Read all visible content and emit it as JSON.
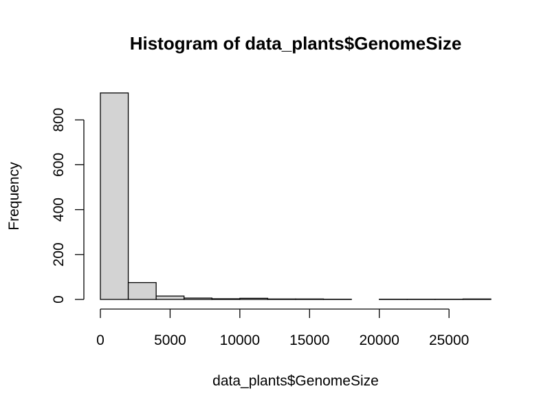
{
  "chart_data": {
    "type": "bar",
    "title": "Histogram of data_plants$GenomeSize",
    "xlabel": "data_plants$GenomeSize",
    "ylabel": "Frequency",
    "bin_edges": [
      0,
      2000,
      4000,
      6000,
      8000,
      10000,
      12000,
      14000,
      16000,
      18000,
      20000,
      22000,
      24000,
      26000,
      28000
    ],
    "values": [
      920,
      75,
      15,
      6,
      3,
      5,
      2,
      2,
      1,
      0,
      1,
      1,
      1,
      2
    ],
    "xlim": [
      0,
      28000
    ],
    "ylim": [
      0,
      920
    ],
    "x_ticks": [
      0,
      5000,
      10000,
      15000,
      20000,
      25000
    ],
    "x_tick_labels": [
      "0",
      "5000",
      "10000",
      "15000",
      "20000",
      "25000"
    ],
    "y_ticks": [
      0,
      200,
      400,
      600,
      800
    ],
    "y_tick_labels": [
      "0",
      "200",
      "400",
      "600",
      "800"
    ],
    "bar_fill": "#d3d3d3",
    "bar_stroke": "#000000",
    "grid": false
  }
}
